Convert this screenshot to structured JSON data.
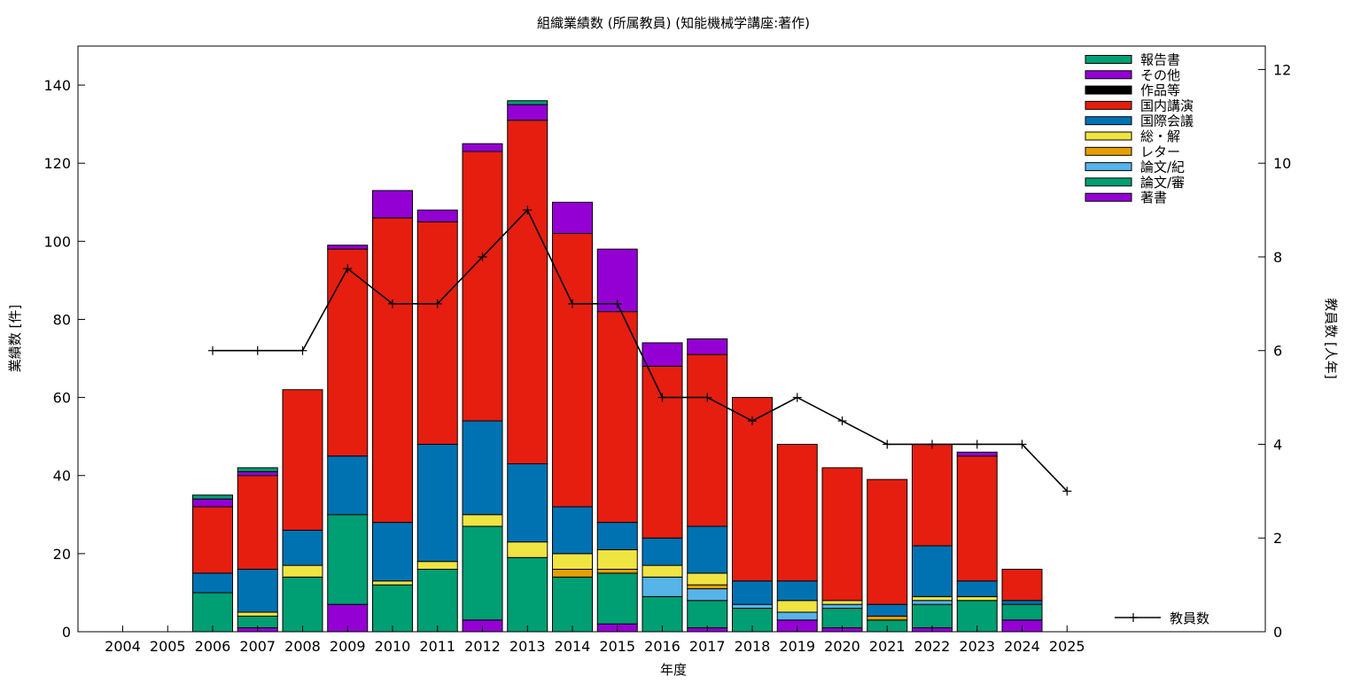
{
  "chart_data": {
    "type": "bar",
    "title": "組織業績数 (所属教員) (知能機械学講座:著作)",
    "xlabel": "年度",
    "ylabel": "業績数 [件]",
    "y2label": "教員数 [人年]",
    "ylim": [
      0,
      150
    ],
    "y2lim": [
      0,
      12.5
    ],
    "yticks": [
      0,
      20,
      40,
      60,
      80,
      100,
      120,
      140
    ],
    "y2ticks": [
      0,
      2,
      4,
      6,
      8,
      10,
      12
    ],
    "grid": false,
    "legend_position": "top-right",
    "categories": [
      "2004",
      "2005",
      "2006",
      "2007",
      "2008",
      "2009",
      "2010",
      "2011",
      "2012",
      "2013",
      "2014",
      "2015",
      "2016",
      "2017",
      "2018",
      "2019",
      "2020",
      "2021",
      "2022",
      "2023",
      "2024",
      "2025"
    ],
    "stack_order": [
      "著書",
      "論文/審",
      "論文/紀",
      "レター",
      "総・解",
      "国際会議",
      "国内講演",
      "作品等",
      "その他",
      "報告書"
    ],
    "series": [
      {
        "name": "報告書",
        "color": "#009e73",
        "values": [
          0,
          0,
          1,
          1,
          0,
          0,
          0,
          0,
          0,
          1,
          0,
          0,
          0,
          0,
          0,
          0,
          0,
          0,
          0,
          0,
          0,
          0
        ]
      },
      {
        "name": "その他",
        "color": "#9400d3",
        "values": [
          0,
          0,
          2,
          1,
          0,
          1,
          7,
          3,
          2,
          4,
          8,
          16,
          6,
          4,
          0,
          0,
          0,
          0,
          0,
          1,
          0,
          0
        ]
      },
      {
        "name": "作品等",
        "color": "#000000",
        "values": [
          0,
          0,
          0,
          0,
          0,
          0,
          0,
          0,
          0,
          0,
          0,
          0,
          0,
          0,
          0,
          0,
          0,
          0,
          0,
          0,
          0,
          0
        ]
      },
      {
        "name": "国内講演",
        "color": "#e51e10",
        "values": [
          0,
          0,
          17,
          24,
          36,
          53,
          78,
          57,
          69,
          88,
          70,
          54,
          44,
          44,
          47,
          35,
          34,
          32,
          26,
          32,
          8,
          0
        ]
      },
      {
        "name": "国際会議",
        "color": "#0072b2",
        "values": [
          0,
          0,
          5,
          11,
          9,
          15,
          15,
          30,
          24,
          20,
          12,
          7,
          7,
          12,
          6,
          5,
          0,
          3,
          13,
          4,
          1,
          0
        ]
      },
      {
        "name": "総・解",
        "color": "#f0e442",
        "values": [
          0,
          0,
          0,
          1,
          3,
          0,
          1,
          2,
          3,
          4,
          4,
          5,
          3,
          3,
          0,
          3,
          1,
          0,
          1,
          1,
          0,
          0
        ]
      },
      {
        "name": "レター",
        "color": "#e69f00",
        "values": [
          0,
          0,
          0,
          0,
          0,
          0,
          0,
          0,
          0,
          0,
          2,
          1,
          0,
          1,
          0,
          0,
          0,
          1,
          0,
          0,
          0,
          0
        ]
      },
      {
        "name": "論文/紀",
        "color": "#56b4e9",
        "values": [
          0,
          0,
          0,
          0,
          0,
          0,
          0,
          0,
          0,
          0,
          0,
          0,
          5,
          3,
          1,
          2,
          1,
          0,
          1,
          0,
          0,
          0
        ]
      },
      {
        "name": "論文/審",
        "color": "#009e73",
        "values": [
          0,
          0,
          10,
          3,
          14,
          23,
          12,
          16,
          24,
          19,
          14,
          13,
          9,
          7,
          6,
          0,
          5,
          3,
          6,
          8,
          4,
          0
        ]
      },
      {
        "name": "著書",
        "color": "#9400d3",
        "values": [
          0,
          0,
          0,
          1,
          0,
          7,
          0,
          0,
          3,
          0,
          0,
          2,
          0,
          1,
          0,
          3,
          1,
          0,
          1,
          0,
          3,
          0
        ]
      }
    ],
    "line_series": {
      "name": "教員数",
      "color": "#000000",
      "axis": "y2",
      "values": [
        null,
        null,
        6,
        6,
        6,
        7.75,
        7,
        7,
        8,
        9,
        7,
        7,
        5,
        5,
        4.5,
        5,
        4.5,
        4,
        4,
        4,
        4,
        3
      ]
    }
  }
}
